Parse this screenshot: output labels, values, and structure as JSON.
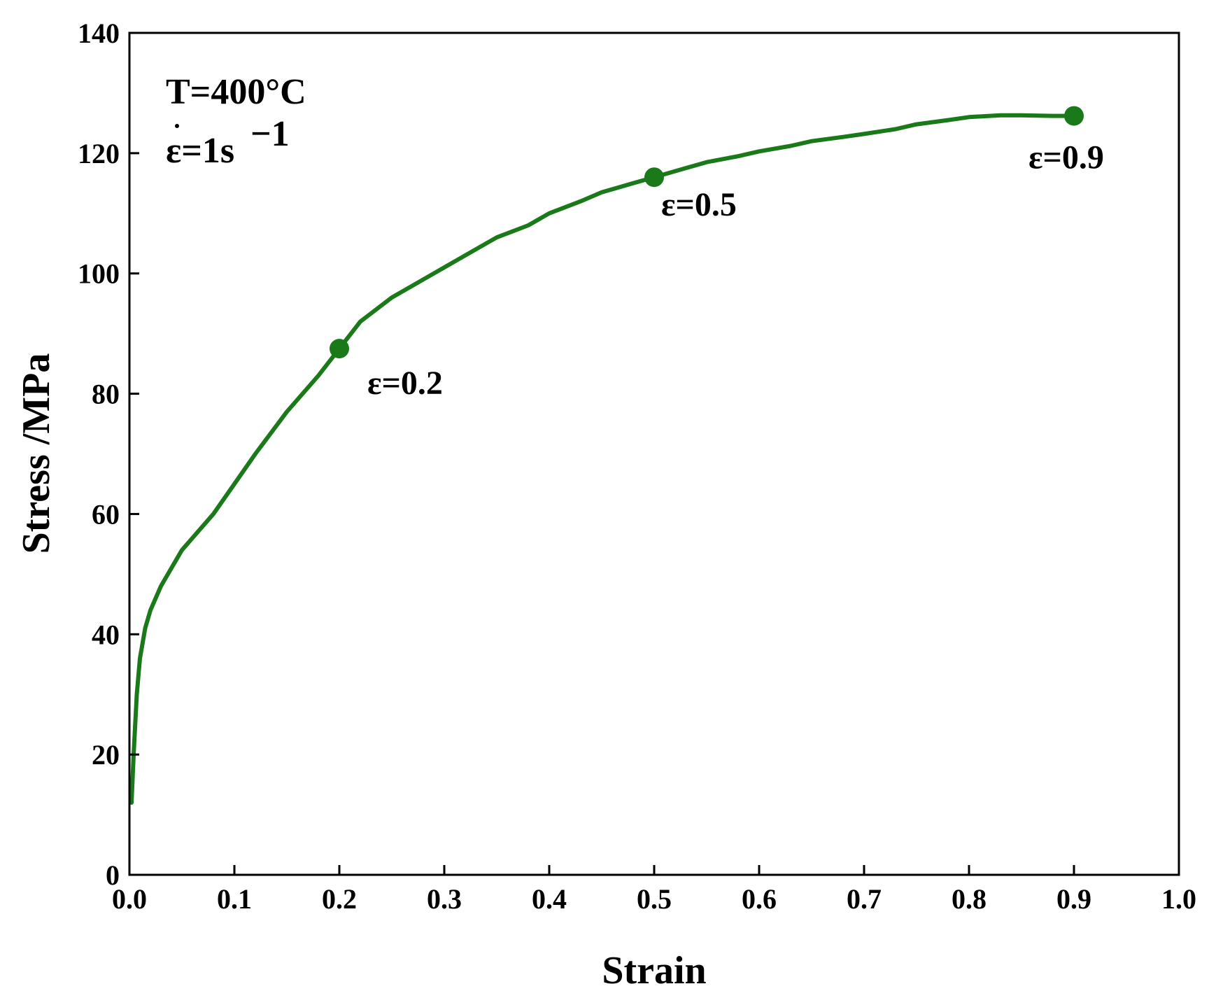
{
  "chart_data": {
    "type": "line",
    "xlabel": "Strain",
    "ylabel": "Stress /MPa",
    "xlim": [
      0.0,
      1.0
    ],
    "ylim": [
      0,
      140
    ],
    "x_ticks": [
      "0.0",
      "0.1",
      "0.2",
      "0.3",
      "0.4",
      "0.5",
      "0.6",
      "0.7",
      "0.8",
      "0.9",
      "1.0"
    ],
    "y_ticks": [
      "0",
      "20",
      "40",
      "60",
      "80",
      "100",
      "120",
      "140"
    ],
    "grid": false,
    "conditions": {
      "temperature": "T=400°C",
      "rate_base": "ε=1s",
      "rate_exp": "−1"
    },
    "series": [
      {
        "color": "#1a7a1a",
        "x": [
          0.002,
          0.004,
          0.007,
          0.01,
          0.015,
          0.02,
          0.03,
          0.04,
          0.05,
          0.06,
          0.08,
          0.1,
          0.12,
          0.15,
          0.18,
          0.2,
          0.22,
          0.25,
          0.28,
          0.3,
          0.33,
          0.35,
          0.38,
          0.4,
          0.43,
          0.45,
          0.48,
          0.5,
          0.53,
          0.55,
          0.58,
          0.6,
          0.63,
          0.65,
          0.68,
          0.7,
          0.73,
          0.75,
          0.78,
          0.8,
          0.83,
          0.85,
          0.88,
          0.9
        ],
        "y": [
          12,
          20,
          30,
          36,
          41,
          44,
          48,
          51,
          54,
          56,
          60,
          65,
          70,
          77,
          83,
          87.5,
          92,
          96,
          99,
          101,
          104,
          106,
          108,
          110,
          112,
          113.5,
          115,
          116,
          117.5,
          118.5,
          119.5,
          120.3,
          121.2,
          122,
          122.7,
          123.2,
          124,
          124.8,
          125.5,
          126,
          126.3,
          126.3,
          126.2,
          126.2
        ]
      }
    ],
    "markers": [
      {
        "x": 0.2,
        "y": 87.5,
        "label": "ε=0.2"
      },
      {
        "x": 0.5,
        "y": 116,
        "label": "ε=0.5"
      },
      {
        "x": 0.9,
        "y": 126.2,
        "label": "ε=0.9"
      }
    ]
  }
}
